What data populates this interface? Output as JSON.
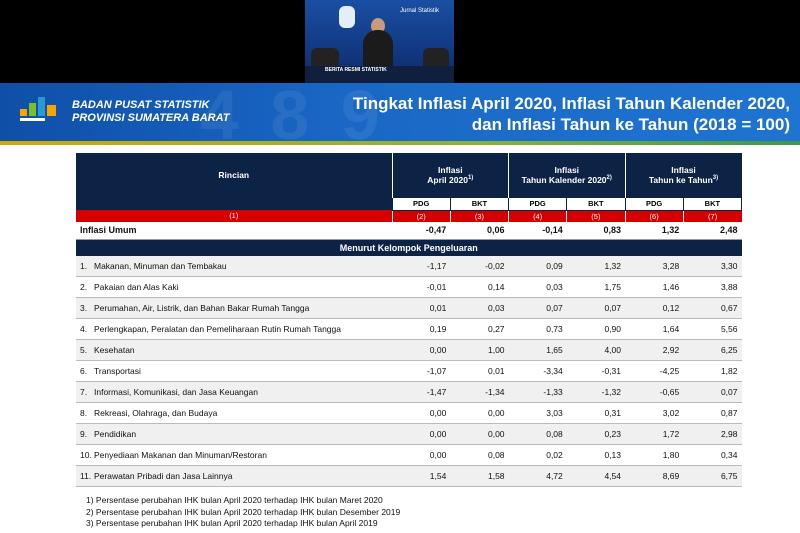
{
  "video": {
    "logo_text": "Jurnal Statistik",
    "caption": "BERITA RESMI STATISTIK"
  },
  "header": {
    "org_line1": "BADAN PUSAT STATISTIK",
    "org_line2": "PROVINSI SUMATERA BARAT",
    "title_line1": "Tingkat Inflasi April 2020, Inflasi Tahun Kalender 2020,",
    "title_line2": "dan Inflasi Tahun ke Tahun (2018 = 100)",
    "decor": "4 8 9"
  },
  "table": {
    "col_rincian": "Rincian",
    "groups": [
      {
        "line1": "Inflasi",
        "line2": "April 2020",
        "sup": "1)"
      },
      {
        "line1": "Inflasi",
        "line2": "Tahun Kalender 2020",
        "sup": "2)"
      },
      {
        "line1": "Inflasi",
        "line2": "Tahun ke Tahun",
        "sup": "3)"
      }
    ],
    "sub": [
      "PDG",
      "BKT",
      "PDG",
      "BKT",
      "PDG",
      "BKT"
    ],
    "numbers": [
      "(1)",
      "(2)",
      "(3)",
      "(4)",
      "(5)",
      "(6)",
      "(7)"
    ],
    "umum": {
      "label": "Inflasi Umum",
      "values": [
        "-0,47",
        "0,06",
        "-0,14",
        "0,83",
        "1,32",
        "2,48"
      ]
    },
    "kelompok_title": "Menurut Kelompok Pengeluaran",
    "rows": [
      {
        "no": "1.",
        "label": "Makanan, Minuman dan Tembakau",
        "values": [
          "-1,17",
          "-0,02",
          "0,09",
          "1,32",
          "3,28",
          "3,30"
        ]
      },
      {
        "no": "2.",
        "label": "Pakaian dan Alas Kaki",
        "values": [
          "-0,01",
          "0,14",
          "0,03",
          "1,75",
          "1,46",
          "3,88"
        ]
      },
      {
        "no": "3.",
        "label": "Perumahan, Air, Listrik, dan Bahan Bakar Rumah Tangga",
        "values": [
          "0,01",
          "0,03",
          "0,07",
          "0,07",
          "0,12",
          "0,67"
        ]
      },
      {
        "no": "4.",
        "label": "Perlengkapan, Peralatan dan Pemeliharaan Rutin Rumah Tangga",
        "values": [
          "0,19",
          "0,27",
          "0,73",
          "0,90",
          "1,64",
          "5,56"
        ]
      },
      {
        "no": "5.",
        "label": "Kesehatan",
        "values": [
          "0,00",
          "1,00",
          "1,65",
          "4,00",
          "2,92",
          "6,25"
        ]
      },
      {
        "no": "6.",
        "label": "Transportasi",
        "values": [
          "-1,07",
          "0,01",
          "-3,34",
          "-0,31",
          "-4,25",
          "1,82"
        ]
      },
      {
        "no": "7.",
        "label": "Informasi, Komunikasi, dan Jasa Keuangan",
        "values": [
          "-1,47",
          "-1,34",
          "-1,33",
          "-1,32",
          "-0,65",
          "0,07"
        ]
      },
      {
        "no": "8.",
        "label": "Rekreasi, Olahraga, dan Budaya",
        "values": [
          "0,00",
          "0,00",
          "3,03",
          "0,31",
          "3,02",
          "0,87"
        ]
      },
      {
        "no": "9.",
        "label": "Pendidikan",
        "values": [
          "0,00",
          "0,00",
          "0,08",
          "0,23",
          "1,72",
          "2,98"
        ]
      },
      {
        "no": "10.",
        "label": "Penyediaan Makanan dan Minuman/Restoran",
        "values": [
          "0,00",
          "0,08",
          "0,02",
          "0,13",
          "1,80",
          "0,34"
        ]
      },
      {
        "no": "11.",
        "label": "Perawatan Pribadi dan Jasa Lainnya",
        "values": [
          "1,54",
          "1,58",
          "4,72",
          "4,54",
          "8,69",
          "6,75"
        ]
      }
    ]
  },
  "notes": [
    "1)  Persentase perubahan IHK  bulan April 2020 terhadap IHK bulan Maret 2020",
    "2)  Persentase perubahan IHK  bulan April 2020  terhadap IHK bulan Desember 2019",
    "3)  Persentase perubahan IHK  bulan April 2020 terhadap IHK bulan April 2019"
  ],
  "colors": {
    "navy": "#0d2346",
    "red": "#d40000",
    "banner": "#1a68c6"
  }
}
